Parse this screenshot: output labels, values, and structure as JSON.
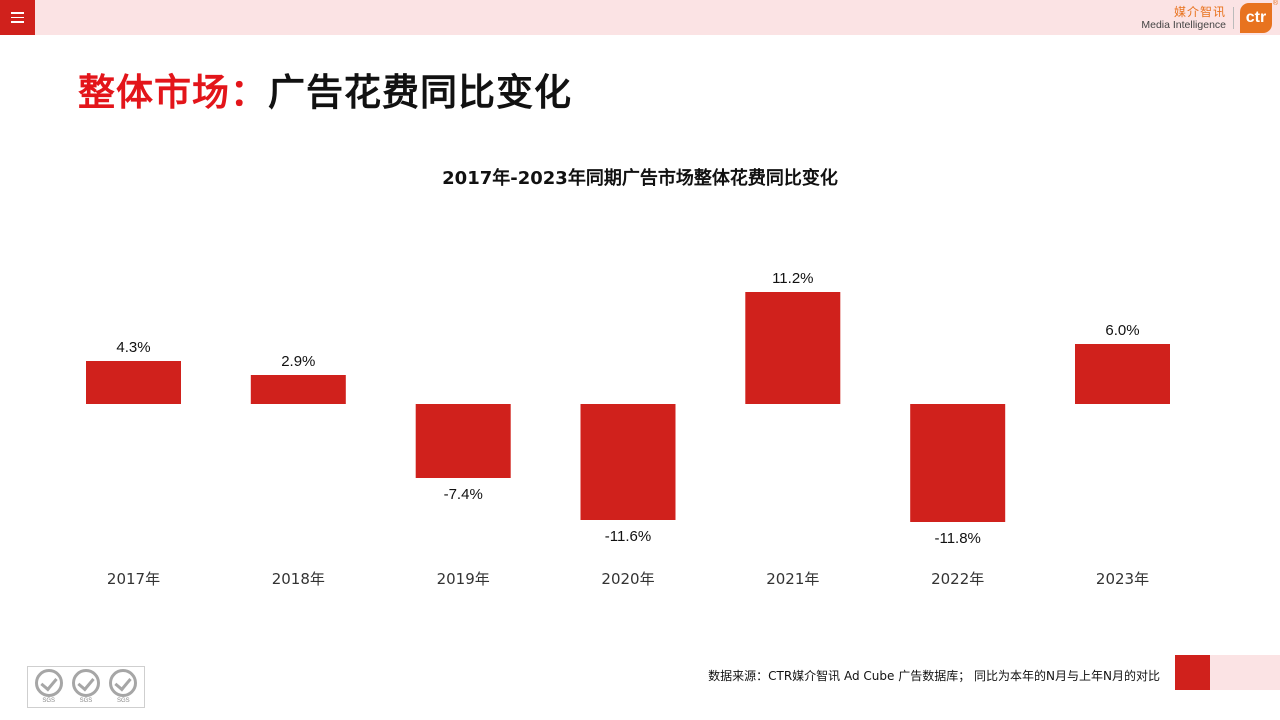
{
  "header": {
    "menu_icon": "hamburger-menu-icon",
    "brand_cn": "媒介智讯",
    "brand_en": "Media Intelligence",
    "brand_logo_text": "ctr",
    "brand_logo_mark": "®"
  },
  "page": {
    "title_highlight": "整体市场：",
    "title_main": "广告花费同比变化"
  },
  "chart_data": {
    "type": "bar",
    "title": "2017年-2023年同期广告市场整体花费同比变化",
    "categories": [
      "2017年",
      "2018年",
      "2019年",
      "2020年",
      "2021年",
      "2022年",
      "2023年"
    ],
    "values": [
      4.3,
      2.9,
      -7.4,
      -11.6,
      11.2,
      -11.8,
      6.0
    ],
    "data_labels": [
      "4.3%",
      "2.9%",
      "-7.4%",
      "-11.6%",
      "11.2%",
      "-11.8%",
      "6.0%"
    ],
    "xlabel": "",
    "ylabel": "",
    "ylim": [
      -12,
      12
    ],
    "grid": false,
    "legend": "none",
    "bar_color": "#d0211c"
  },
  "footer": {
    "source": "数据来源：CTR媒介智讯 Ad Cube 广告数据库；  同比为本年的N月与上年N月的对比",
    "cert_label": "SGS"
  },
  "colors": {
    "accent_red": "#d0211c",
    "title_red": "#e3151a",
    "pink_band": "#fbe3e4",
    "brand_orange": "#e8731f"
  }
}
